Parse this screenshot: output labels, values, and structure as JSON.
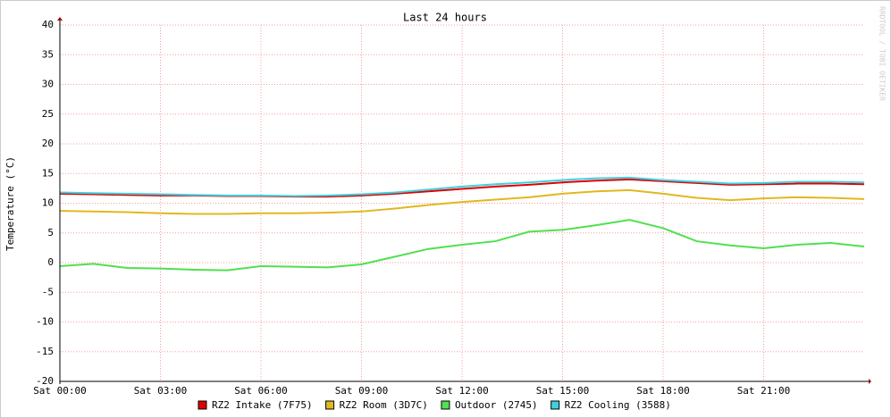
{
  "chart_data": {
    "type": "line",
    "title": "Last 24 hours",
    "y_label": "Temperature (°C)",
    "watermark": "RRDTOOL / TOBI OETIKER",
    "x": [
      0,
      1,
      2,
      3,
      4,
      5,
      6,
      7,
      8,
      9,
      10,
      11,
      12,
      13,
      14,
      15,
      16,
      17,
      18,
      19,
      20,
      21,
      22,
      23,
      24
    ],
    "xlim": [
      0,
      24
    ],
    "xticks": [
      {
        "value": 0,
        "label": "Sat 00:00"
      },
      {
        "value": 3,
        "label": "Sat 03:00"
      },
      {
        "value": 6,
        "label": "Sat 06:00"
      },
      {
        "value": 9,
        "label": "Sat 09:00"
      },
      {
        "value": 12,
        "label": "Sat 12:00"
      },
      {
        "value": 15,
        "label": "Sat 15:00"
      },
      {
        "value": 18,
        "label": "Sat 18:00"
      },
      {
        "value": 21,
        "label": "Sat 21:00"
      }
    ],
    "ylim": [
      -20,
      40
    ],
    "yticks": [
      -20,
      -15,
      -10,
      -5,
      0,
      5,
      10,
      15,
      20,
      25,
      30,
      35,
      40
    ],
    "grid": true,
    "series": [
      {
        "name": "RZ2 Intake (7F75)",
        "color": "#e00000",
        "values": [
          11.6,
          11.5,
          11.4,
          11.3,
          11.3,
          11.2,
          11.2,
          11.1,
          11.1,
          11.3,
          11.6,
          12.0,
          12.4,
          12.8,
          13.1,
          13.5,
          13.8,
          14.0,
          13.7,
          13.4,
          13.1,
          13.2,
          13.3,
          13.3,
          13.2
        ]
      },
      {
        "name": "RZ2 Room (3D7C)",
        "color": "#e0b820",
        "values": [
          8.7,
          8.6,
          8.5,
          8.3,
          8.2,
          8.2,
          8.3,
          8.3,
          8.4,
          8.6,
          9.1,
          9.7,
          10.2,
          10.6,
          11.0,
          11.6,
          12.0,
          12.2,
          11.6,
          10.9,
          10.5,
          10.8,
          11.0,
          10.9,
          10.7
        ]
      },
      {
        "name": "Outdoor (2745)",
        "color": "#50e050",
        "values": [
          -0.6,
          -0.2,
          -0.9,
          -1.0,
          -1.2,
          -1.3,
          -0.6,
          -0.7,
          -0.8,
          -0.3,
          1.0,
          2.3,
          3.0,
          3.6,
          5.2,
          5.5,
          6.3,
          7.2,
          5.8,
          3.6,
          2.9,
          2.4,
          3.0,
          3.3,
          2.7
        ]
      },
      {
        "name": "RZ2 Cooling (3588)",
        "color": "#40d0e0",
        "values": [
          11.8,
          11.7,
          11.6,
          11.5,
          11.4,
          11.3,
          11.3,
          11.2,
          11.3,
          11.5,
          11.8,
          12.3,
          12.8,
          13.2,
          13.5,
          13.9,
          14.2,
          14.3,
          13.9,
          13.6,
          13.3,
          13.4,
          13.6,
          13.6,
          13.5
        ]
      }
    ]
  }
}
